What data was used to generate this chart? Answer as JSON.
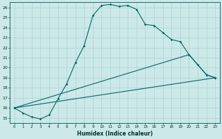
{
  "xlabel": "Humidex (Indice chaleur)",
  "background_color": "#cce8e8",
  "grid_color": "#aad4d4",
  "line_color": "#006666",
  "xlim": [
    -0.5,
    23.5
  ],
  "ylim": [
    14.5,
    26.5
  ],
  "xticks": [
    0,
    1,
    2,
    3,
    4,
    5,
    6,
    7,
    8,
    9,
    10,
    11,
    12,
    13,
    14,
    15,
    16,
    17,
    18,
    19,
    20,
    21,
    22,
    23
  ],
  "yticks": [
    15,
    16,
    17,
    18,
    19,
    20,
    21,
    22,
    23,
    24,
    25,
    26
  ],
  "series1": [
    [
      0,
      16.0
    ],
    [
      1,
      15.5
    ],
    [
      2,
      15.1
    ],
    [
      3,
      14.9
    ],
    [
      4,
      15.3
    ],
    [
      5,
      16.9
    ],
    [
      6,
      18.4
    ],
    [
      7,
      20.5
    ],
    [
      8,
      22.2
    ],
    [
      9,
      25.2
    ],
    [
      10,
      26.2
    ],
    [
      11,
      26.3
    ],
    [
      12,
      26.1
    ],
    [
      13,
      26.2
    ],
    [
      14,
      25.8
    ],
    [
      15,
      24.3
    ],
    [
      16,
      24.2
    ],
    [
      17,
      23.5
    ],
    [
      18,
      22.8
    ],
    [
      19,
      22.6
    ],
    [
      20,
      21.3
    ],
    [
      21,
      20.3
    ],
    [
      22,
      19.3
    ],
    [
      23,
      19.0
    ]
  ],
  "series2": [
    [
      0,
      16.0
    ],
    [
      23,
      19.0
    ]
  ],
  "series3": [
    [
      0,
      16.0
    ],
    [
      20,
      21.3
    ],
    [
      22,
      19.3
    ],
    [
      23,
      19.0
    ]
  ]
}
